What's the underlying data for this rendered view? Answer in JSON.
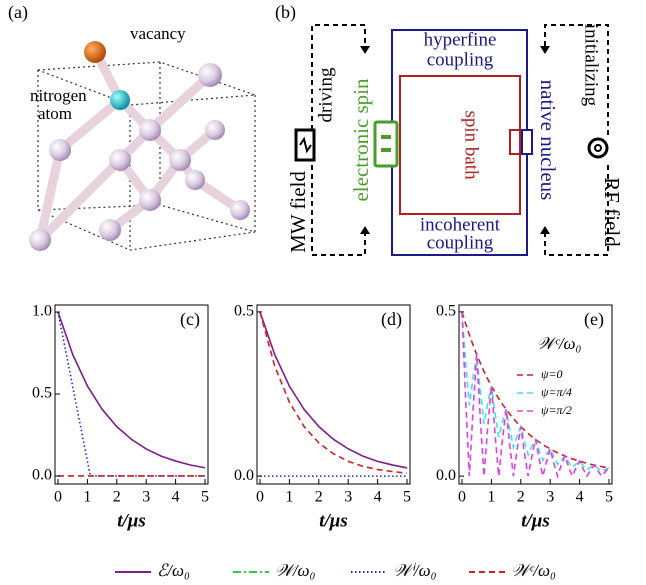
{
  "panel_a": {
    "label": "(a)",
    "vacancy": "vacancy",
    "nitrogen_atom": [
      "nitrogen",
      "atom"
    ]
  },
  "panel_b": {
    "label": "(b)",
    "hyperfine_coupling": [
      "hyperfine",
      "coupling"
    ],
    "incoherent_coupling": [
      "incoherent",
      "coupling"
    ],
    "spin_bath": "spin bath",
    "electronic_spin": "electronic spin",
    "native_nucleus": "native nucleus",
    "driving": "driving",
    "initializing": "initializing",
    "mw_field": "MW field",
    "rf_field": "RF field"
  },
  "chart_data": [
    {
      "type": "line",
      "label": "(c)",
      "xlabel": "t/μs",
      "x": [
        0,
        0.5,
        1,
        1.5,
        2,
        2.5,
        3,
        3.5,
        4,
        4.5,
        5
      ],
      "xlim": [
        -0.102,
        5.102
      ],
      "xticks": [
        0,
        1,
        2,
        3,
        4,
        5
      ],
      "ylim": [
        -0.049,
        1.043
      ],
      "yticks": [
        {
          "value": 0,
          "label": "0.0"
        },
        0.5,
        {
          "value": 1,
          "label": "1.0"
        }
      ],
      "series": [
        {
          "name": "ℰ/ω₀",
          "color": "#7b1f8a",
          "style": "solid",
          "values": [
            1,
            0.741,
            0.549,
            0.407,
            0.301,
            0.223,
            0.165,
            0.122,
            0.091,
            0.067,
            0.05
          ]
        },
        {
          "name": "𝒲ⁱ/ω₀",
          "color": "#1f2bbf",
          "style": "dotted",
          "x": [
            0,
            1.1,
            5
          ],
          "values": [
            1,
            0,
            0
          ]
        },
        {
          "name": "𝒲ᶜ/ω₀",
          "color": "#d42020",
          "style": "dashed",
          "values": [
            0,
            0,
            0,
            0,
            0,
            0,
            0,
            0,
            0,
            0,
            0
          ]
        }
      ]
    },
    {
      "type": "line",
      "label": "(d)",
      "xlabel": "t/μs",
      "x": [
        0,
        0.5,
        1,
        1.5,
        2,
        2.5,
        3,
        3.5,
        4,
        4.5,
        5
      ],
      "xlim": [
        -0.102,
        5.102
      ],
      "xticks": [
        0,
        1,
        2,
        3,
        4,
        5
      ],
      "ylim": [
        -0.024,
        0.521
      ],
      "yticks": [
        {
          "value": 0,
          "label": "0.0"
        },
        0.5
      ],
      "series": [
        {
          "name": "ℰ/ω₀",
          "color": "#7b1f8a",
          "style": "solid",
          "values": [
            0.5,
            0.37,
            0.274,
            0.203,
            0.151,
            0.112,
            0.083,
            0.061,
            0.045,
            0.034,
            0.025
          ]
        },
        {
          "name": "𝒲ⁱ/ω₀",
          "color": "#1f2bbf",
          "style": "dotted",
          "values": [
            0,
            0,
            0,
            0,
            0,
            0,
            0,
            0,
            0,
            0,
            0
          ]
        },
        {
          "name": "𝒲ᶜ/ω₀",
          "color": "#d42020",
          "style": "dashed",
          "values": [
            0.5,
            0.335,
            0.225,
            0.151,
            0.101,
            0.068,
            0.045,
            0.03,
            0.02,
            0.014,
            0.009
          ]
        }
      ]
    },
    {
      "type": "line",
      "label": "(e)",
      "xlabel": "t/μs",
      "legend_title": "𝒲ᶜ/ω₀",
      "x": [
        0,
        0.125,
        0.25,
        0.375,
        0.5,
        0.625,
        0.75,
        0.875,
        1,
        1.125,
        1.25,
        1.375,
        1.5,
        1.625,
        1.75,
        1.875,
        2,
        2.125,
        2.25,
        2.375,
        2.5,
        2.625,
        2.75,
        2.875,
        3,
        3.125,
        3.25,
        3.375,
        3.5,
        3.625,
        3.75,
        3.875,
        4,
        4.125,
        4.25,
        4.375,
        4.5,
        4.625,
        4.75,
        4.875,
        5
      ],
      "xlim": [
        -0.102,
        5.102
      ],
      "xticks": [
        0,
        1,
        2,
        3,
        4,
        5
      ],
      "ylim": [
        -0.024,
        0.521
      ],
      "yticks": [
        {
          "value": 0,
          "label": "0.0"
        },
        0.5
      ],
      "series": [
        {
          "name": "ψ=0",
          "color": "#d42020",
          "style": "dashed",
          "values": [
            0.5,
            0.4639,
            0.4304,
            0.3993,
            0.3704,
            0.3437,
            0.3188,
            0.2958,
            0.2744,
            0.2546,
            0.2362,
            0.2191,
            0.2033,
            0.1886,
            0.175,
            0.1623,
            0.1506,
            0.1397,
            0.1296,
            0.1203,
            0.1116,
            0.1035,
            0.096,
            0.0891,
            0.0826,
            0.0767,
            0.0711,
            0.066,
            0.0612,
            0.0568,
            0.0527,
            0.0489,
            0.0454,
            0.0421,
            0.039,
            0.0362,
            0.0336,
            0.0312,
            0.0289,
            0.0268,
            0.0249
          ]
        },
        {
          "name": "ψ=π/4",
          "color": "#3fe0f0",
          "style": "dashed",
          "values": [
            0.5,
            0.3479,
            0.2152,
            0.2995,
            0.3704,
            0.2578,
            0.1594,
            0.2219,
            0.2744,
            0.191,
            0.1181,
            0.1643,
            0.2033,
            0.1415,
            0.0875,
            0.1217,
            0.1506,
            0.1048,
            0.0648,
            0.0902,
            0.1116,
            0.0776,
            0.048,
            0.0668,
            0.0826,
            0.0575,
            0.0356,
            0.0495,
            0.0612,
            0.0426,
            0.0264,
            0.0367,
            0.0454,
            0.0316,
            0.0195,
            0.0272,
            0.0336,
            0.0234,
            0.0145,
            0.0201,
            0.0249
          ]
        },
        {
          "name": "ψ=π/2",
          "color": "#e040e0",
          "style": "dashed",
          "values": [
            0.5,
            0.232,
            0,
            0.1997,
            0.3704,
            0.1719,
            0,
            0.1479,
            0.2744,
            0.1273,
            0,
            0.1096,
            0.2033,
            0.0943,
            0,
            0.0812,
            0.1506,
            0.0699,
            0,
            0.0602,
            0.1116,
            0.0518,
            0,
            0.0446,
            0.0826,
            0.0384,
            0,
            0.033,
            0.0612,
            0.0284,
            0,
            0.0245,
            0.0454,
            0.0211,
            0,
            0.0181,
            0.0336,
            0.0156,
            0,
            0.0134,
            0.0249
          ]
        }
      ]
    }
  ],
  "legend": [
    {
      "name": "ℰ/ω₀",
      "color": "#7b1f8a",
      "style": "solid"
    },
    {
      "name": "𝒲/ω₀",
      "color": "#2ecc40",
      "style": "dashdot"
    },
    {
      "name": "𝒲ⁱ/ω₀",
      "color": "#1f2bbf",
      "style": "dotted"
    },
    {
      "name": "𝒲ᶜ/ω₀",
      "color": "#d42020",
      "style": "dashed"
    }
  ]
}
